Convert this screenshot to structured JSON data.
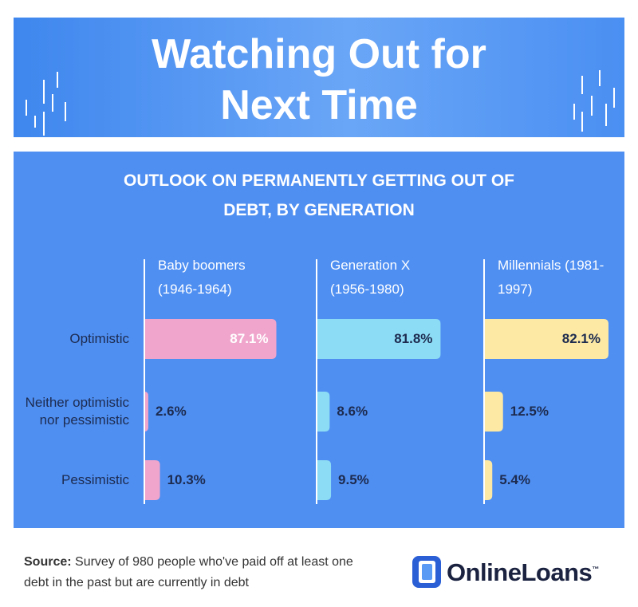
{
  "chart_data": {
    "type": "bar",
    "orientation": "horizontal",
    "title": "Watching Out for Next Time",
    "subtitle": "OUTLOOK ON PERMANENTLY GETTING OUT OF DEBT, BY GENERATION",
    "categories": [
      "Optimistic",
      "Neither optimistic nor pessimistic",
      "Pessimistic"
    ],
    "series": [
      {
        "name": "Baby boomers (1946-1964)",
        "color": "#f0a6cc",
        "label_color": "#ffffff",
        "values": [
          87.1,
          2.6,
          10.3
        ],
        "value_labels": [
          "87.1%",
          "2.6%",
          "10.3%"
        ]
      },
      {
        "name": "Generation X (1956-1980)",
        "color": "#8ddcf5",
        "label_color": "#1d2b4f",
        "values": [
          81.8,
          8.6,
          9.5
        ],
        "value_labels": [
          "81.8%",
          "8.6%",
          "9.5%"
        ]
      },
      {
        "name": "Millennials (1981-1997)",
        "color": "#fde9a3",
        "label_color": "#1d2b4f",
        "values": [
          82.1,
          12.5,
          5.4
        ],
        "value_labels": [
          "82.1%",
          "12.5%",
          "5.4%"
        ]
      }
    ],
    "source_label": "Source:",
    "source_text": "Survey of 980 people who've paid off at least one debt in the past but are currently in debt",
    "brand": "OnlineLoans",
    "brand_mark": "™"
  }
}
